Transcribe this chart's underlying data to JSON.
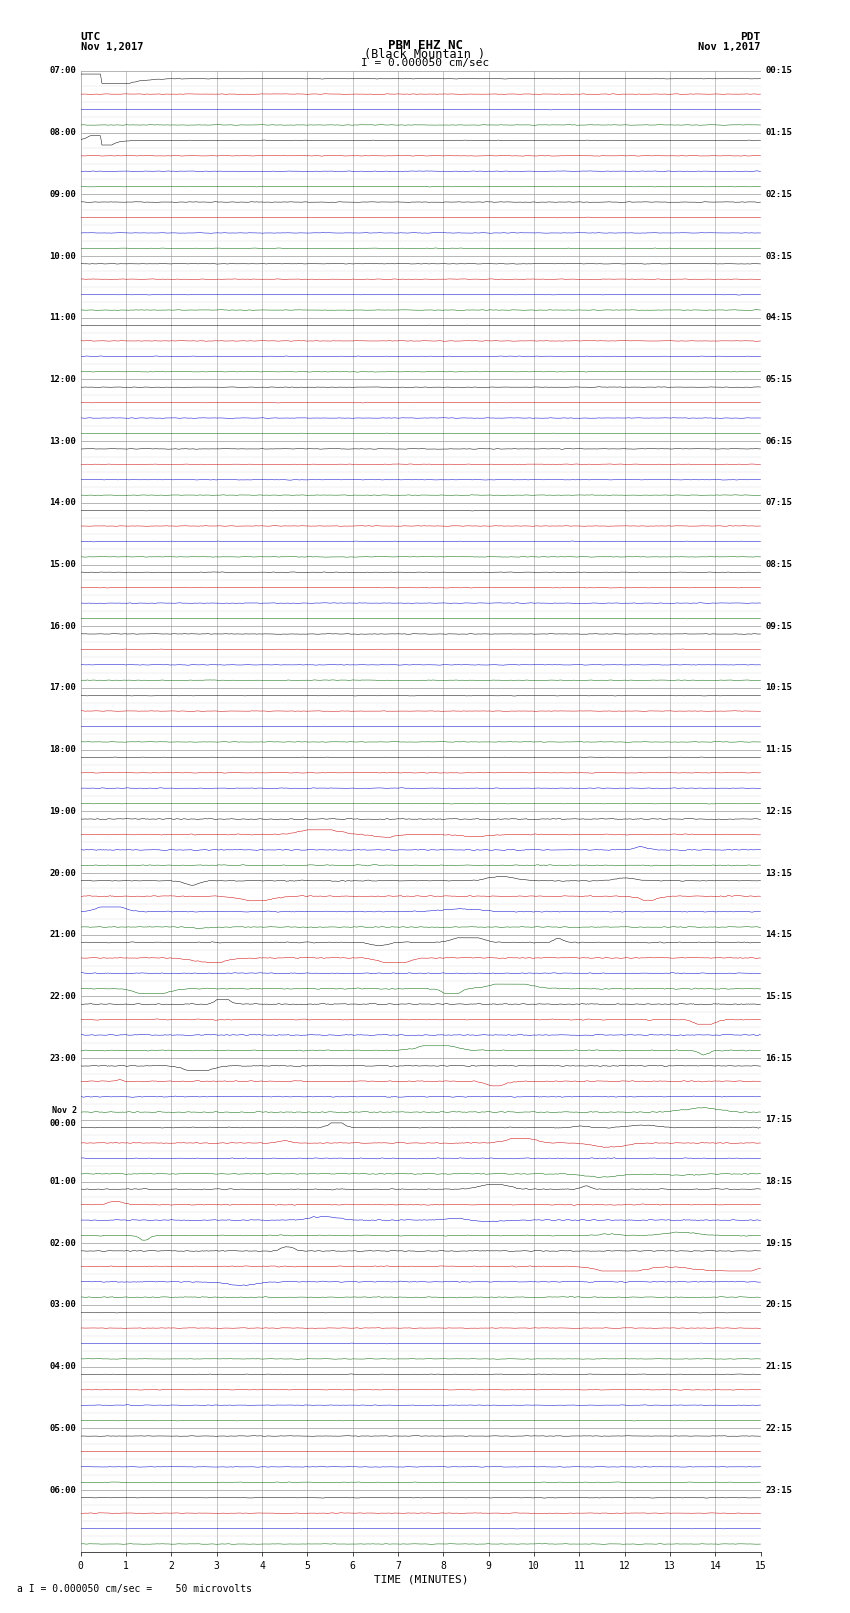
{
  "title_line1": "PBM EHZ NC",
  "title_line2": "(Black Mountain )",
  "scale_label": "I = 0.000050 cm/sec",
  "utc_label": "UTC",
  "utc_date": "Nov 1,2017",
  "pdt_label": "PDT",
  "pdt_date": "Nov 1,2017",
  "xlabel": "TIME (MINUTES)",
  "footer": "a I = 0.000050 cm/sec =    50 microvolts",
  "x_ticks": [
    0,
    1,
    2,
    3,
    4,
    5,
    6,
    7,
    8,
    9,
    10,
    11,
    12,
    13,
    14,
    15
  ],
  "background_color": "#ffffff",
  "grid_color": "#999999",
  "colors": [
    "#000000",
    "#cc0000",
    "#0000cc",
    "#006600"
  ],
  "left_times": [
    "07:00",
    "",
    "",
    "",
    "08:00",
    "",
    "",
    "",
    "09:00",
    "",
    "",
    "",
    "10:00",
    "",
    "",
    "",
    "11:00",
    "",
    "",
    "",
    "12:00",
    "",
    "",
    "",
    "13:00",
    "",
    "",
    "",
    "14:00",
    "",
    "",
    "",
    "15:00",
    "",
    "",
    "",
    "16:00",
    "",
    "",
    "",
    "17:00",
    "",
    "",
    "",
    "18:00",
    "",
    "",
    "",
    "19:00",
    "",
    "",
    "",
    "20:00",
    "",
    "",
    "",
    "21:00",
    "",
    "",
    "",
    "22:00",
    "",
    "",
    "",
    "23:00",
    "",
    "",
    "",
    "Nov 2\n00:00",
    "",
    "",
    "",
    "01:00",
    "",
    "",
    "",
    "02:00",
    "",
    "",
    "",
    "03:00",
    "",
    "",
    "",
    "04:00",
    "",
    "",
    "",
    "05:00",
    "",
    "",
    "",
    "06:00",
    "",
    "",
    ""
  ],
  "right_times_labels": [
    "00:15",
    "",
    "",
    "",
    "01:15",
    "",
    "",
    "",
    "02:15",
    "",
    "",
    "",
    "03:15",
    "",
    "",
    "",
    "04:15",
    "",
    "",
    "",
    "05:15",
    "",
    "",
    "",
    "06:15",
    "",
    "",
    "",
    "07:15",
    "",
    "",
    "",
    "08:15",
    "",
    "",
    "",
    "09:15",
    "",
    "",
    "",
    "10:15",
    "",
    "",
    "",
    "11:15",
    "",
    "",
    "",
    "12:15",
    "",
    "",
    "",
    "13:15",
    "",
    "",
    "",
    "14:15",
    "",
    "",
    "",
    "15:15",
    "",
    "",
    "",
    "16:15",
    "",
    "",
    "",
    "17:15",
    "",
    "",
    "",
    "18:15",
    "",
    "",
    "",
    "19:15",
    "",
    "",
    "",
    "20:15",
    "",
    "",
    "",
    "21:15",
    "",
    "",
    "",
    "22:15",
    "",
    "",
    "",
    "23:15",
    "",
    "",
    ""
  ],
  "num_hour_groups": 24,
  "traces_per_group": 4,
  "minutes_per_row": 15,
  "samples_per_row": 900,
  "noise_amplitude": 0.025,
  "fig_width": 8.5,
  "fig_height": 16.13,
  "dpi": 100
}
